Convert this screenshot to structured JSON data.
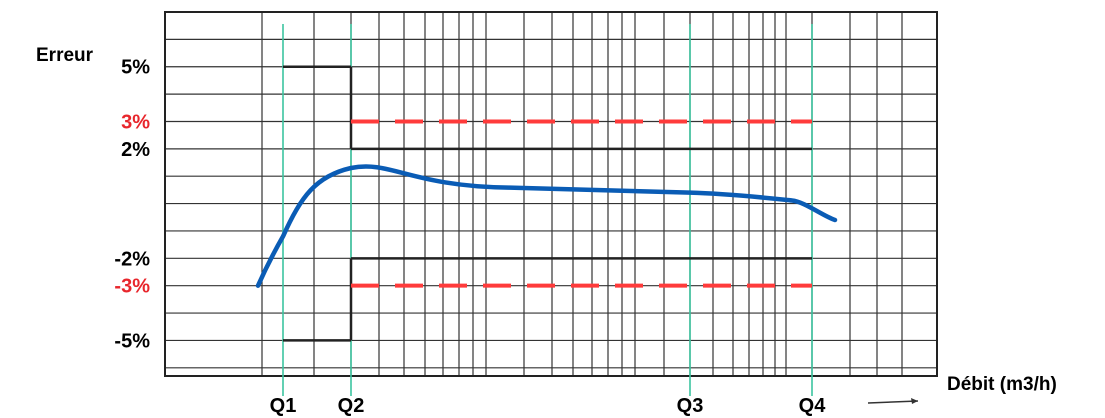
{
  "chart_data": {
    "type": "line",
    "ylabel": "Erreur",
    "xlabel": "Débit (m3/h)",
    "y_ticks": [
      {
        "label": "5%",
        "value": 5,
        "color": "#000000"
      },
      {
        "label": "3%",
        "value": 3,
        "color": "#e8262c"
      },
      {
        "label": "2%",
        "value": 2,
        "color": "#000000"
      },
      {
        "label": "-2%",
        "value": -2,
        "color": "#000000"
      },
      {
        "label": "-3%",
        "value": -3,
        "color": "#e8262c"
      },
      {
        "label": "-5%",
        "value": -5,
        "color": "#000000"
      }
    ],
    "x_ticks": [
      {
        "label": "Q1"
      },
      {
        "label": "Q2"
      },
      {
        "label": "Q3"
      },
      {
        "label": "Q4"
      }
    ],
    "ylim": [
      -6.3,
      7.0
    ],
    "grid": true,
    "limits": [
      {
        "name": "",
        "style": "solid",
        "color": "#222222",
        "segments": [
          {
            "from": "Q1",
            "to": "Q2",
            "upper": 5,
            "lower": -5
          },
          {
            "from": "Q2",
            "to": "Q4",
            "upper": 2,
            "lower": -2
          }
        ]
      },
      {
        "name": "",
        "style": "dashed",
        "color": "#ff3b3b",
        "segments": [
          {
            "from": "Q2",
            "to": "Q4",
            "upper": 3,
            "lower": -3
          }
        ]
      }
    ],
    "series": [
      {
        "name": "",
        "color": "#0a5cb5",
        "x_positions": [
          "start",
          "Q1",
          "Q2",
          "Q3",
          "Q4",
          "end"
        ],
        "values": [
          -3.0,
          -1.2,
          1.3,
          0.4,
          0.15,
          -0.6
        ]
      }
    ],
    "colors": {
      "grid": "#333333",
      "q_lines": "#3cc4a0",
      "curve": "#0a5cb5",
      "mpe_solid": "#222222",
      "mpe_dashed": "#ff3b3b"
    }
  }
}
